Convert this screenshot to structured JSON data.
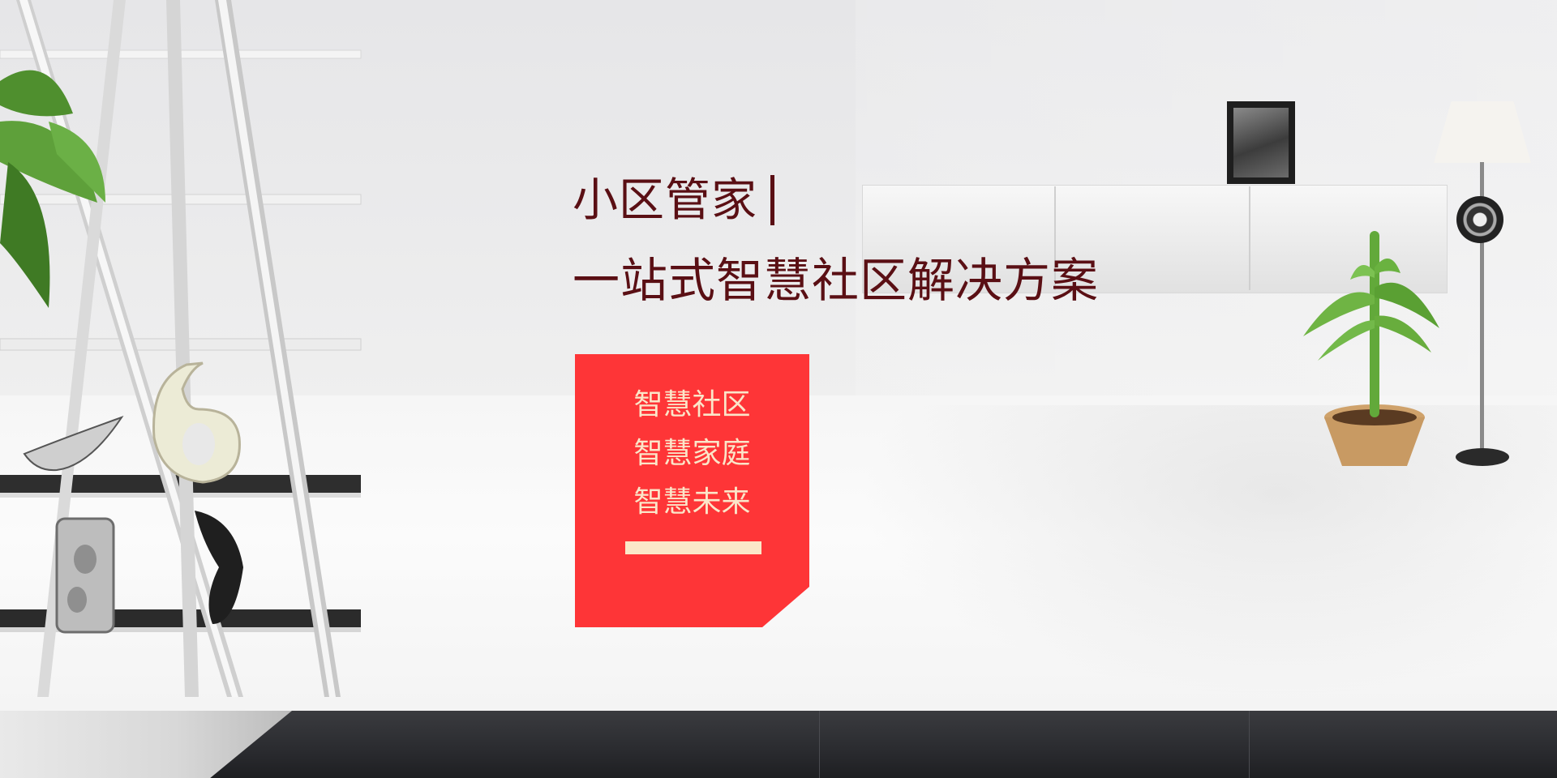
{
  "hero": {
    "title": "小区管家",
    "subtitle": "一站式智慧社区解决方案",
    "card_items": [
      "智慧社区",
      "智慧家庭",
      "智慧未来"
    ]
  },
  "colors": {
    "title_text": "#5a0f14",
    "card_background": "#fe3537",
    "card_text": "#fbe6c9",
    "card_rule": "#fbe8c8"
  }
}
